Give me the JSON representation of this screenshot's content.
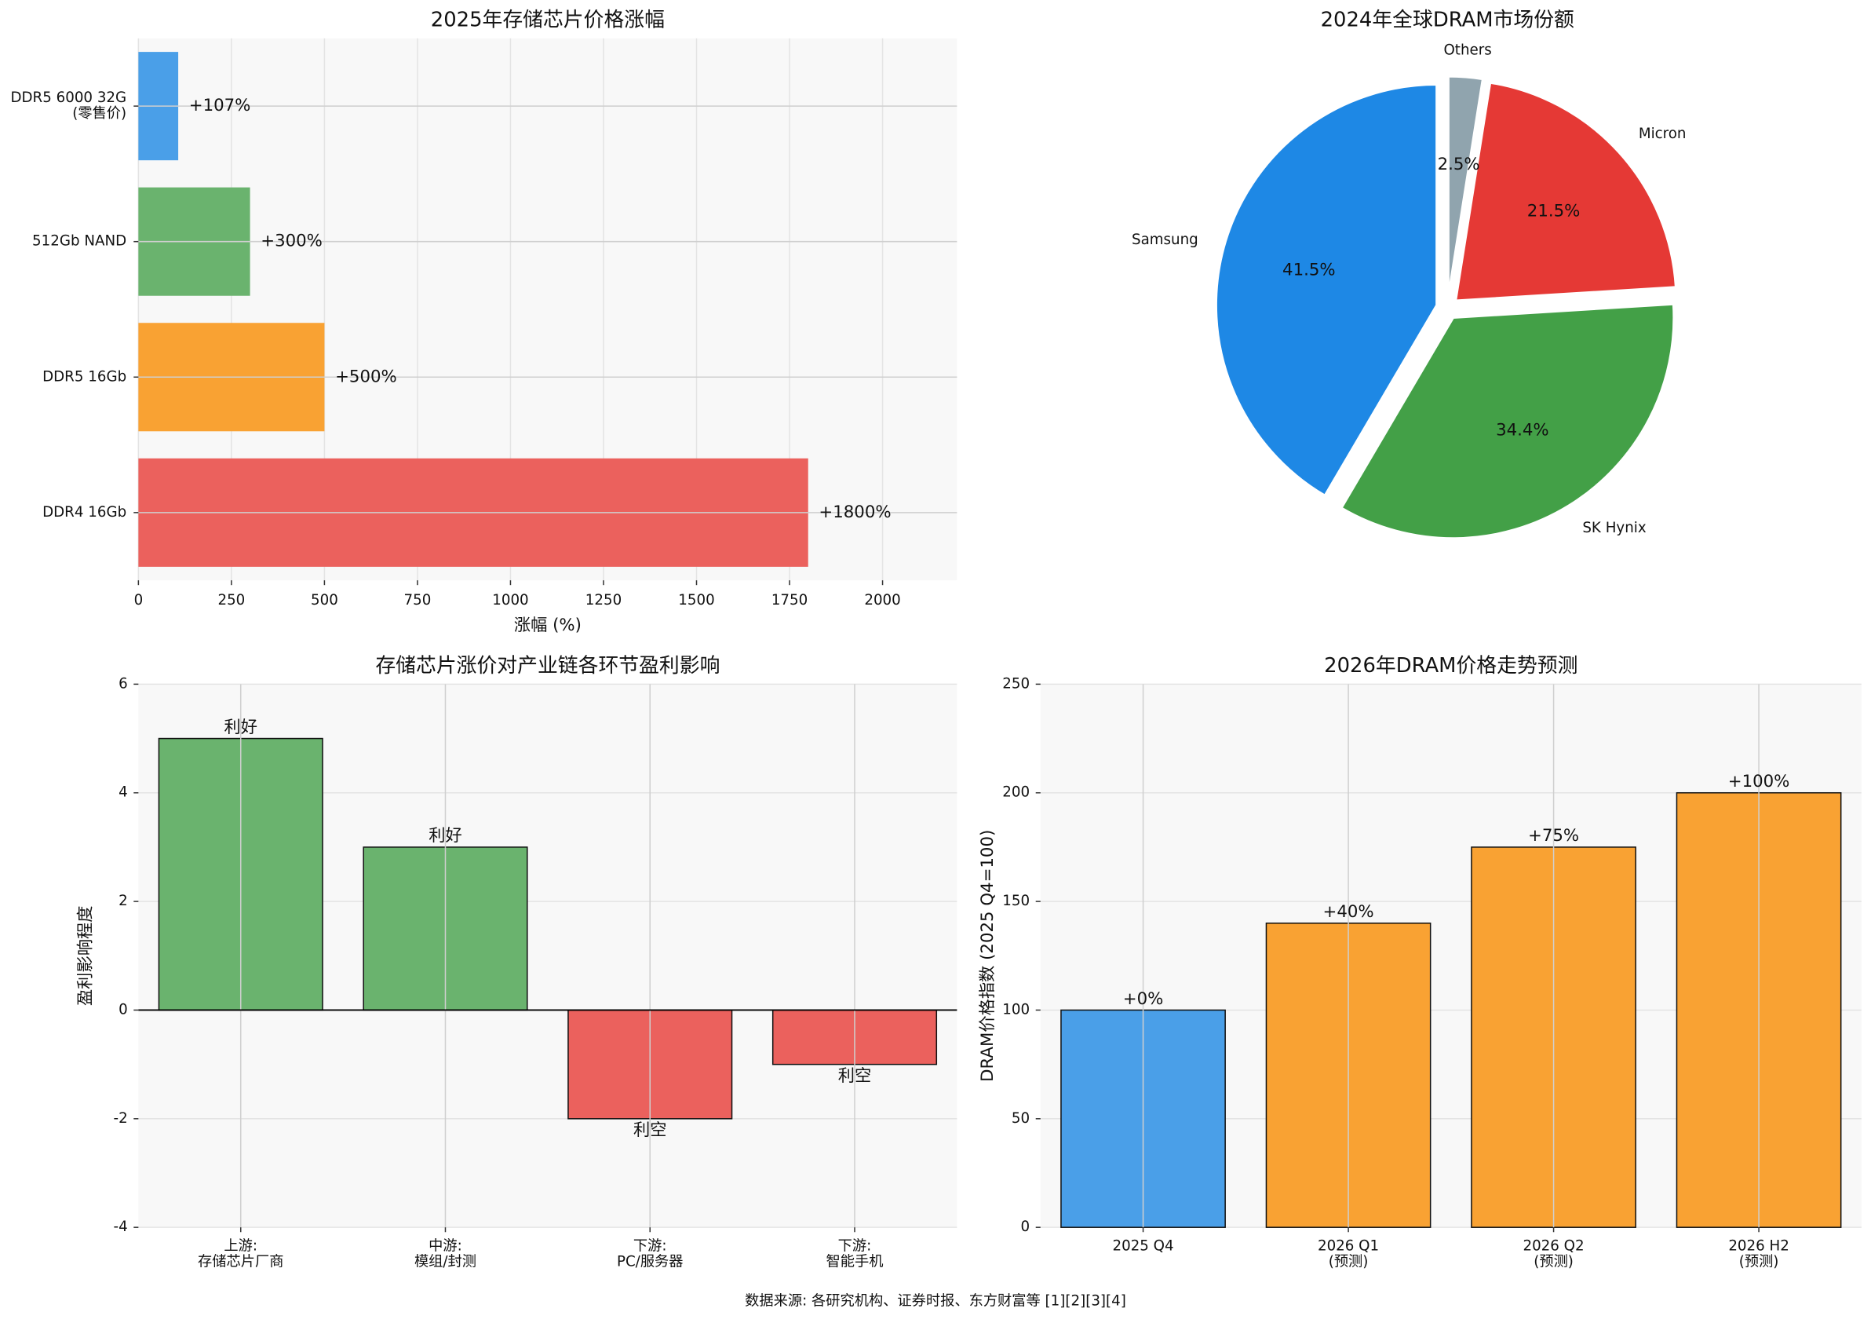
{
  "chart_data": [
    {
      "type": "hbar",
      "title": "2025年存储芯片价格涨幅",
      "xlabel": "涨幅 (%)",
      "categories": [
        "DDR5 6000 32G\n(零售价)",
        "512Gb NAND",
        "DDR5 16Gb",
        "DDR4 16Gb"
      ],
      "values": [
        107,
        300,
        500,
        1800
      ],
      "value_labels": [
        "+107%",
        "+300%",
        "+500%",
        "+1800%"
      ],
      "colors": [
        "#4a9fe8",
        "#6ab36e",
        "#f9a233",
        "#eb615d"
      ],
      "xlim": [
        0,
        2200
      ],
      "xticks": [
        0,
        250,
        500,
        750,
        1000,
        1250,
        1500,
        1750,
        2000
      ],
      "grid": true
    },
    {
      "type": "pie",
      "title": "2024年全球DRAM市场份额",
      "categories": [
        "Samsung",
        "SK Hynix",
        "Micron",
        "Others"
      ],
      "values": [
        41.5,
        34.4,
        21.5,
        2.5
      ],
      "value_labels": [
        "41.5%",
        "34.4%",
        "21.5%",
        "2.5%"
      ],
      "colors": [
        "#1e88e5",
        "#43a047",
        "#e53935",
        "#90a4ae"
      ]
    },
    {
      "type": "bar",
      "title": "存储芯片涨价对产业链各环节盈利影响",
      "ylabel": "盈利影响程度",
      "categories": [
        "上游:\n存储芯片厂商",
        "中游:\n模组/封测",
        "下游:\nPC/服务器",
        "下游:\n智能手机"
      ],
      "values": [
        5,
        3,
        -2,
        -1
      ],
      "annotations": [
        "利好",
        "利好",
        "利空",
        "利空"
      ],
      "colors": [
        "#6ab36e",
        "#6ab36e",
        "#eb615d",
        "#eb615d"
      ],
      "ylim": [
        -4,
        6
      ],
      "yticks": [
        -4,
        -2,
        0,
        2,
        4,
        6
      ],
      "grid": true
    },
    {
      "type": "bar",
      "title": "2026年DRAM价格走势预测",
      "ylabel": "DRAM价格指数 (2025 Q4=100)",
      "categories": [
        "2025 Q4",
        "2026 Q1\n(预测)",
        "2026 Q2\n(预测)",
        "2026 H2\n(预测)"
      ],
      "values": [
        100,
        140,
        175,
        200
      ],
      "annotations": [
        "+0%",
        "+40%",
        "+75%",
        "+100%"
      ],
      "colors": [
        "#4a9fe8",
        "#f9a233",
        "#f9a233",
        "#f9a233"
      ],
      "ylim": [
        0,
        250
      ],
      "yticks": [
        0,
        50,
        100,
        150,
        200,
        250
      ],
      "grid": true
    }
  ],
  "footer": "数据来源: 各研究机构、证券时报、东方财富等 [1][2][3][4]"
}
